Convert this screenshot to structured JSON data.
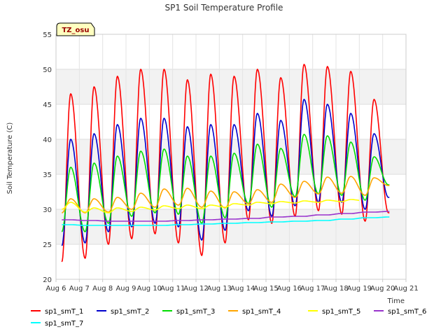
{
  "chart_data": {
    "type": "line",
    "title": "SP1 Soil Temperature Profile",
    "xlabel": "Time",
    "ylabel": "Soil Temperature (C)",
    "badge": "TZ_osu",
    "xlim": [
      0,
      15
    ],
    "ylim": [
      20,
      55
    ],
    "x_tick_values": [
      0,
      1,
      2,
      3,
      4,
      5,
      6,
      7,
      8,
      9,
      10,
      11,
      12,
      13,
      14,
      15
    ],
    "x_tick_labels": [
      "Aug 6",
      "Aug 7",
      "Aug 8",
      "Aug 9",
      "Aug 10",
      "Aug 11",
      "Aug 12",
      "Aug 13",
      "Aug 14",
      "Aug 15",
      "Aug 16",
      "Aug 17",
      "Aug 18",
      "Aug 19",
      "Aug 20",
      "Aug 21"
    ],
    "y_ticks": [
      20,
      25,
      30,
      35,
      40,
      45,
      50,
      55
    ],
    "grid": true,
    "legend_position": "bottom",
    "series": [
      {
        "name": "sp1_smT_1",
        "color": "#ff0000",
        "x_start": 0.25,
        "x_end": 14.3,
        "daily": [
          {
            "day": 0,
            "min": 22.5,
            "max": 46.5
          },
          {
            "day": 1,
            "min": 23.0,
            "max": 47.5
          },
          {
            "day": 2,
            "min": 25.0,
            "max": 49.0
          },
          {
            "day": 3,
            "min": 25.8,
            "max": 50.0
          },
          {
            "day": 4,
            "min": 26.5,
            "max": 50.0
          },
          {
            "day": 5,
            "min": 25.2,
            "max": 48.5
          },
          {
            "day": 6,
            "min": 23.4,
            "max": 49.3
          },
          {
            "day": 7,
            "min": 25.2,
            "max": 49.0
          },
          {
            "day": 8,
            "min": 28.5,
            "max": 50.0
          },
          {
            "day": 9,
            "min": 28.0,
            "max": 48.8
          },
          {
            "day": 10,
            "min": 29.0,
            "max": 50.7
          },
          {
            "day": 11,
            "min": 29.8,
            "max": 50.4
          },
          {
            "day": 12,
            "min": 29.3,
            "max": 49.7
          },
          {
            "day": 13,
            "min": 28.3,
            "max": 45.7
          },
          {
            "day": 14,
            "min": 29.5,
            "max": 29.8
          }
        ]
      },
      {
        "name": "sp1_smT_2",
        "color": "#0000cc",
        "x_start": 0.25,
        "x_end": 14.3,
        "daily": [
          {
            "day": 0,
            "min": 24.8,
            "max": 40.0
          },
          {
            "day": 1,
            "min": 25.2,
            "max": 40.8
          },
          {
            "day": 2,
            "min": 26.8,
            "max": 42.1
          },
          {
            "day": 3,
            "min": 27.5,
            "max": 43.0
          },
          {
            "day": 4,
            "min": 28.0,
            "max": 43.0
          },
          {
            "day": 5,
            "min": 27.5,
            "max": 41.8
          },
          {
            "day": 6,
            "min": 25.6,
            "max": 42.1
          },
          {
            "day": 7,
            "min": 27.0,
            "max": 42.1
          },
          {
            "day": 8,
            "min": 29.8,
            "max": 43.7
          },
          {
            "day": 9,
            "min": 29.0,
            "max": 42.7
          },
          {
            "day": 10,
            "min": 30.5,
            "max": 45.7
          },
          {
            "day": 11,
            "min": 31.0,
            "max": 45.0
          },
          {
            "day": 12,
            "min": 31.0,
            "max": 43.7
          },
          {
            "day": 13,
            "min": 30.0,
            "max": 40.8
          },
          {
            "day": 14,
            "min": 31.7,
            "max": 31.7
          }
        ]
      },
      {
        "name": "sp1_smT_3",
        "color": "#00dd00",
        "x_start": 0.25,
        "x_end": 14.3,
        "daily": [
          {
            "day": 0,
            "min": 26.8,
            "max": 36.0
          },
          {
            "day": 1,
            "min": 26.8,
            "max": 36.6
          },
          {
            "day": 2,
            "min": 28.0,
            "max": 37.6
          },
          {
            "day": 3,
            "min": 29.0,
            "max": 38.3
          },
          {
            "day": 4,
            "min": 29.5,
            "max": 38.6
          },
          {
            "day": 5,
            "min": 29.3,
            "max": 37.6
          },
          {
            "day": 6,
            "min": 28.0,
            "max": 37.6
          },
          {
            "day": 7,
            "min": 28.8,
            "max": 38.0
          },
          {
            "day": 8,
            "min": 30.8,
            "max": 39.3
          },
          {
            "day": 9,
            "min": 30.3,
            "max": 38.7
          },
          {
            "day": 10,
            "min": 31.8,
            "max": 40.7
          },
          {
            "day": 11,
            "min": 32.2,
            "max": 40.5
          },
          {
            "day": 12,
            "min": 32.0,
            "max": 39.6
          },
          {
            "day": 13,
            "min": 31.3,
            "max": 37.5
          },
          {
            "day": 14,
            "min": 33.5,
            "max": 33.5
          }
        ]
      },
      {
        "name": "sp1_smT_4",
        "color": "#ffa500",
        "x_start": 0.25,
        "x_end": 14.3,
        "daily": [
          {
            "day": 0,
            "min": 29.5,
            "max": 31.5
          },
          {
            "day": 1,
            "min": 29.5,
            "max": 31.5
          },
          {
            "day": 2,
            "min": 29.6,
            "max": 31.7
          },
          {
            "day": 3,
            "min": 30.0,
            "max": 32.3
          },
          {
            "day": 4,
            "min": 30.3,
            "max": 32.9
          },
          {
            "day": 5,
            "min": 30.6,
            "max": 33.0
          },
          {
            "day": 6,
            "min": 30.3,
            "max": 32.6
          },
          {
            "day": 7,
            "min": 30.2,
            "max": 32.5
          },
          {
            "day": 8,
            "min": 30.8,
            "max": 32.8
          },
          {
            "day": 9,
            "min": 31.0,
            "max": 33.6
          },
          {
            "day": 10,
            "min": 31.7,
            "max": 34.0
          },
          {
            "day": 11,
            "min": 32.2,
            "max": 34.6
          },
          {
            "day": 12,
            "min": 32.3,
            "max": 34.7
          },
          {
            "day": 13,
            "min": 32.0,
            "max": 34.5
          },
          {
            "day": 14,
            "min": 33.4,
            "max": 33.6
          }
        ]
      },
      {
        "name": "sp1_smT_5",
        "color": "#ffff00",
        "x_start": 0.25,
        "x_end": 13.0,
        "daily": [
          {
            "day": 0,
            "min": 30.0,
            "max": 31.0
          },
          {
            "day": 1,
            "min": 29.6,
            "max": 30.2
          },
          {
            "day": 2,
            "min": 29.5,
            "max": 30.2
          },
          {
            "day": 3,
            "min": 29.7,
            "max": 30.3
          },
          {
            "day": 4,
            "min": 29.9,
            "max": 30.5
          },
          {
            "day": 5,
            "min": 30.1,
            "max": 30.6
          },
          {
            "day": 6,
            "min": 30.1,
            "max": 30.6
          },
          {
            "day": 7,
            "min": 30.3,
            "max": 30.8
          },
          {
            "day": 8,
            "min": 30.6,
            "max": 31.0
          },
          {
            "day": 9,
            "min": 30.8,
            "max": 31.1
          },
          {
            "day": 10,
            "min": 30.9,
            "max": 31.2
          },
          {
            "day": 11,
            "min": 31.0,
            "max": 31.3
          },
          {
            "day": 12,
            "min": 31.1,
            "max": 31.4
          },
          {
            "day": 13,
            "min": 31.2,
            "max": 31.4
          }
        ]
      },
      {
        "name": "sp1_smT_6",
        "color": "#9933cc",
        "x_start": 0.25,
        "x_end": 14.3,
        "daily": [
          {
            "day": 0,
            "min": 28.5,
            "max": 28.5
          },
          {
            "day": 1,
            "min": 28.4,
            "max": 28.4
          },
          {
            "day": 2,
            "min": 28.3,
            "max": 28.3
          },
          {
            "day": 3,
            "min": 28.3,
            "max": 28.3
          },
          {
            "day": 4,
            "min": 28.3,
            "max": 28.3
          },
          {
            "day": 5,
            "min": 28.4,
            "max": 28.4
          },
          {
            "day": 6,
            "min": 28.5,
            "max": 28.5
          },
          {
            "day": 7,
            "min": 28.6,
            "max": 28.6
          },
          {
            "day": 8,
            "min": 28.7,
            "max": 28.7
          },
          {
            "day": 9,
            "min": 28.9,
            "max": 28.9
          },
          {
            "day": 10,
            "min": 29.0,
            "max": 29.0
          },
          {
            "day": 11,
            "min": 29.2,
            "max": 29.2
          },
          {
            "day": 12,
            "min": 29.4,
            "max": 29.4
          },
          {
            "day": 13,
            "min": 29.6,
            "max": 29.6
          },
          {
            "day": 14,
            "min": 29.7,
            "max": 29.7
          }
        ]
      },
      {
        "name": "sp1_smT_7",
        "color": "#00ffff",
        "x_start": 0.25,
        "x_end": 14.3,
        "daily": [
          {
            "day": 0,
            "min": 27.8,
            "max": 27.8
          },
          {
            "day": 1,
            "min": 27.7,
            "max": 27.7
          },
          {
            "day": 2,
            "min": 27.7,
            "max": 27.7
          },
          {
            "day": 3,
            "min": 27.7,
            "max": 27.7
          },
          {
            "day": 4,
            "min": 27.7,
            "max": 27.7
          },
          {
            "day": 5,
            "min": 27.8,
            "max": 27.8
          },
          {
            "day": 6,
            "min": 27.9,
            "max": 27.9
          },
          {
            "day": 7,
            "min": 28.0,
            "max": 28.0
          },
          {
            "day": 8,
            "min": 28.1,
            "max": 28.1
          },
          {
            "day": 9,
            "min": 28.2,
            "max": 28.2
          },
          {
            "day": 10,
            "min": 28.3,
            "max": 28.3
          },
          {
            "day": 11,
            "min": 28.4,
            "max": 28.4
          },
          {
            "day": 12,
            "min": 28.6,
            "max": 28.6
          },
          {
            "day": 13,
            "min": 28.8,
            "max": 28.8
          },
          {
            "day": 14,
            "min": 28.9,
            "max": 28.9
          }
        ]
      }
    ]
  }
}
